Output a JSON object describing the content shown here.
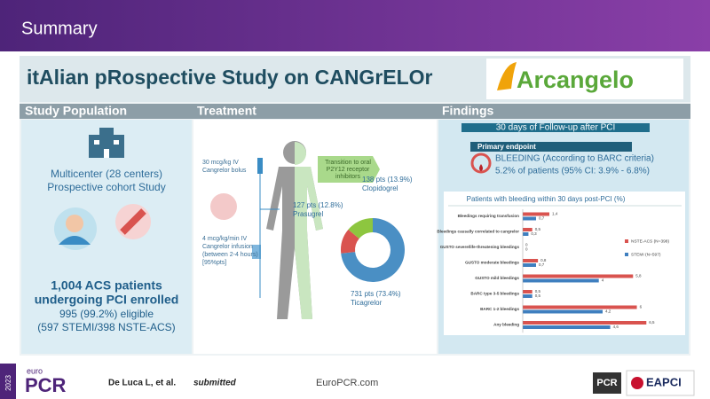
{
  "header": {
    "title": "Summary"
  },
  "study": {
    "title": "itAlian pRospective Study on CANGrELOr",
    "logo": "Arcangelo"
  },
  "sections": [
    "Study Population",
    "Treatment",
    "Findings"
  ],
  "population": {
    "lines": [
      "Multicenter (28 centers)",
      "Prospective cohort Study"
    ],
    "enrolled": [
      "1,004 ACS patients",
      "undergoing PCI enrolled"
    ],
    "eligible": [
      "995 (99.2%) eligible",
      "(597 STEMI/398 NSTE-ACS)"
    ]
  },
  "treatment": {
    "bolus": [
      "30 mcg/kg IV",
      "Cangrelor bolus"
    ],
    "infusion": [
      "4 mcg/kg/min IV",
      "Cangrelor infusion",
      "(between 2-4 hours)",
      "[95%pts]"
    ],
    "transition": [
      "Transition to oral",
      "P2Y12 receptor",
      "inhibitors"
    ]
  },
  "findings": {
    "followup": "30 days of  Follow-up after PCI",
    "endpoint_label": "Primary endpoint",
    "endpoint": "BLEEDING (According to BARC criteria)",
    "result": "5.2% of patients (95%  CI: 3.9% - 6.8%)"
  },
  "footer": {
    "logo_top": "euro",
    "logo_main": "PCR",
    "year": "2023",
    "citation": "De Luca L, et al.",
    "citation_status": "submitted",
    "website": "EuroPCR.com",
    "partner1": "PCR",
    "partner2": "EAPCI"
  },
  "chart_data": [
    {
      "type": "donut",
      "categories": [
        "Ticagrelor",
        "Prasugrel",
        "Clopidogrel"
      ],
      "values": [
        73.4,
        12.8,
        13.9
      ],
      "value_labels": [
        "731 pts (73.4%)",
        "127 pts (12.8%)",
        "138 pts (13.9%)"
      ],
      "colors": [
        "#4a8fc4",
        "#d9534f",
        "#8dc63f"
      ]
    },
    {
      "type": "hbar",
      "title": "Patients with bleeding within 30 days post-PCI (%)",
      "categories": [
        "Bleedings requiring transfusion",
        "Bleedings causally correlated to cangrelor",
        "GUSTO severe/life-threatening bleedings",
        "GUSTO moderate bleedings",
        "GUSTO mild bleedings",
        "BARC type 3-5 bleedings",
        "BARC 1-2 bleedings",
        "Any bleeding"
      ],
      "series": [
        {
          "name": "NSTE-ACS (N=398)",
          "color": "#d9534f",
          "values": [
            1.4,
            0.5,
            0,
            0.8,
            5.8,
            0.5,
            6,
            6.5
          ],
          "value_labels": [
            "1,4",
            "0,5",
            "0",
            "0,8",
            "5,8",
            "0,5",
            "6",
            "6,5"
          ]
        },
        {
          "name": "STEMI (N=597)",
          "color": "#3f7fbf",
          "values": [
            0.7,
            0.3,
            0,
            0.7,
            4,
            0.5,
            4.2,
            4.6
          ],
          "value_labels": [
            "0,7",
            "0,3",
            "0",
            "0,7",
            "4",
            "0,5",
            "4,2",
            "4,6"
          ]
        }
      ],
      "xlim": [
        0,
        7
      ]
    }
  ]
}
